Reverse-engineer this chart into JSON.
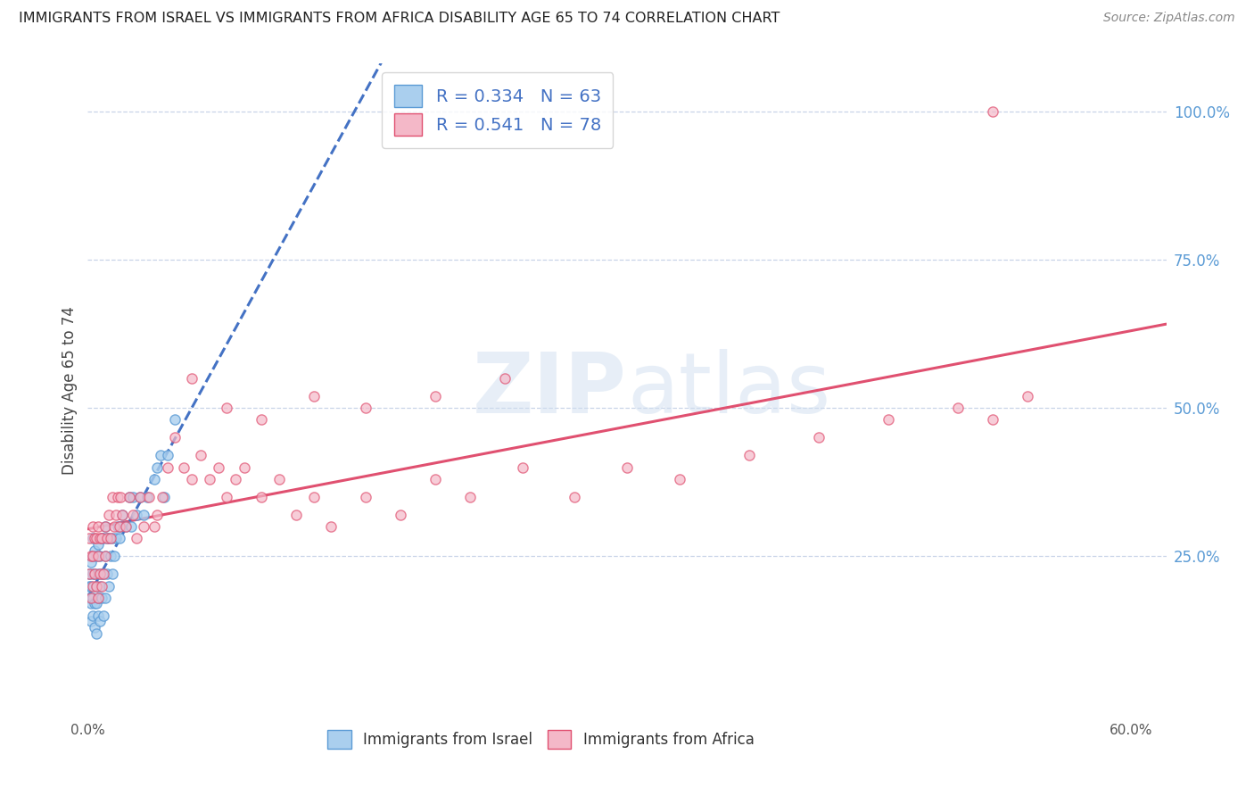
{
  "title": "IMMIGRANTS FROM ISRAEL VS IMMIGRANTS FROM AFRICA DISABILITY AGE 65 TO 74 CORRELATION CHART",
  "source": "Source: ZipAtlas.com",
  "ylabel": "Disability Age 65 to 74",
  "xlim": [
    0.0,
    0.62
  ],
  "ylim": [
    -0.02,
    1.08
  ],
  "ytick_positions": [
    0.25,
    0.5,
    0.75,
    1.0
  ],
  "xtick_positions": [
    0.0,
    0.6
  ],
  "legend_label1": "Immigrants from Israel",
  "legend_label2": "Immigrants from Africa",
  "R1": 0.334,
  "N1": 63,
  "R2": 0.541,
  "N2": 78,
  "color1_face": "#aacfee",
  "color1_edge": "#5b9bd5",
  "color2_face": "#f4b8c8",
  "color2_edge": "#e05070",
  "trendline1_color": "#4472c4",
  "trendline2_color": "#e05070",
  "background_color": "#ffffff",
  "grid_color": "#c8d4e8",
  "title_color": "#222222",
  "source_color": "#888888",
  "right_axis_color": "#5b9bd5",
  "watermark_color": "#d0dff0",
  "watermark_alpha": 0.5,
  "israel_x": [
    0.001,
    0.001,
    0.001,
    0.002,
    0.002,
    0.002,
    0.002,
    0.003,
    0.003,
    0.003,
    0.003,
    0.003,
    0.004,
    0.004,
    0.004,
    0.004,
    0.005,
    0.005,
    0.005,
    0.005,
    0.006,
    0.006,
    0.006,
    0.006,
    0.007,
    0.007,
    0.007,
    0.008,
    0.008,
    0.008,
    0.009,
    0.009,
    0.009,
    0.01,
    0.01,
    0.01,
    0.011,
    0.011,
    0.012,
    0.012,
    0.013,
    0.014,
    0.014,
    0.015,
    0.016,
    0.017,
    0.018,
    0.019,
    0.02,
    0.022,
    0.024,
    0.025,
    0.026,
    0.028,
    0.03,
    0.032,
    0.034,
    0.038,
    0.04,
    0.042,
    0.044,
    0.046,
    0.05
  ],
  "israel_y": [
    0.18,
    0.2,
    0.22,
    0.14,
    0.17,
    0.2,
    0.24,
    0.15,
    0.18,
    0.22,
    0.25,
    0.28,
    0.13,
    0.17,
    0.22,
    0.26,
    0.12,
    0.17,
    0.2,
    0.25,
    0.15,
    0.18,
    0.22,
    0.27,
    0.14,
    0.2,
    0.25,
    0.18,
    0.22,
    0.28,
    0.15,
    0.22,
    0.28,
    0.18,
    0.25,
    0.3,
    0.22,
    0.28,
    0.2,
    0.28,
    0.25,
    0.22,
    0.28,
    0.25,
    0.28,
    0.3,
    0.28,
    0.3,
    0.32,
    0.3,
    0.35,
    0.3,
    0.35,
    0.32,
    0.35,
    0.32,
    0.35,
    0.38,
    0.4,
    0.42,
    0.35,
    0.42,
    0.48
  ],
  "africa_x": [
    0.001,
    0.001,
    0.002,
    0.002,
    0.003,
    0.003,
    0.003,
    0.004,
    0.004,
    0.005,
    0.005,
    0.006,
    0.006,
    0.006,
    0.007,
    0.007,
    0.008,
    0.008,
    0.009,
    0.01,
    0.01,
    0.011,
    0.012,
    0.013,
    0.014,
    0.015,
    0.016,
    0.017,
    0.018,
    0.019,
    0.02,
    0.022,
    0.024,
    0.026,
    0.028,
    0.03,
    0.032,
    0.035,
    0.038,
    0.04,
    0.043,
    0.046,
    0.05,
    0.055,
    0.06,
    0.065,
    0.07,
    0.075,
    0.08,
    0.085,
    0.09,
    0.1,
    0.11,
    0.12,
    0.13,
    0.14,
    0.16,
    0.18,
    0.2,
    0.22,
    0.25,
    0.28,
    0.31,
    0.34,
    0.38,
    0.42,
    0.46,
    0.5,
    0.54,
    0.52,
    0.06,
    0.08,
    0.1,
    0.13,
    0.16,
    0.2,
    0.24,
    0.52
  ],
  "africa_y": [
    0.22,
    0.28,
    0.18,
    0.25,
    0.2,
    0.25,
    0.3,
    0.22,
    0.28,
    0.2,
    0.28,
    0.18,
    0.25,
    0.3,
    0.22,
    0.28,
    0.2,
    0.28,
    0.22,
    0.25,
    0.3,
    0.28,
    0.32,
    0.28,
    0.35,
    0.3,
    0.32,
    0.35,
    0.3,
    0.35,
    0.32,
    0.3,
    0.35,
    0.32,
    0.28,
    0.35,
    0.3,
    0.35,
    0.3,
    0.32,
    0.35,
    0.4,
    0.45,
    0.4,
    0.38,
    0.42,
    0.38,
    0.4,
    0.35,
    0.38,
    0.4,
    0.35,
    0.38,
    0.32,
    0.35,
    0.3,
    0.35,
    0.32,
    0.38,
    0.35,
    0.4,
    0.35,
    0.4,
    0.38,
    0.42,
    0.45,
    0.48,
    0.5,
    0.52,
    0.48,
    0.55,
    0.5,
    0.48,
    0.52,
    0.5,
    0.52,
    0.55,
    1.0
  ]
}
